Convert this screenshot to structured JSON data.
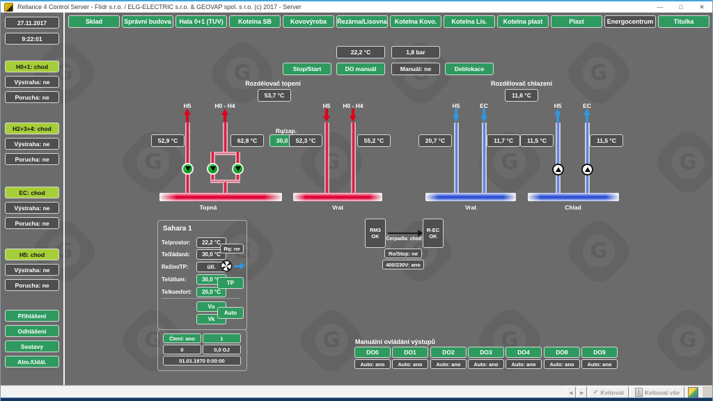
{
  "window": {
    "title": "Reliance 4 Control Server - Flídr s.r.o. / ELG-ELECTRIC s.r.o. & GEOVAP spol. s r.o. (c) 2017 - Server",
    "controls": {
      "minimize": "—",
      "maximize": "□",
      "close": "✕"
    }
  },
  "sidebar": {
    "date": "27.11.2017",
    "time": "9:22:01",
    "groups": [
      {
        "main": "H0+1: chod",
        "warning": "Výstraha: ne",
        "fault": "Porucha: ne"
      },
      {
        "main": "H2+3+4: chod",
        "warning": "Výstraha: ne",
        "fault": "Porucha: ne"
      },
      {
        "main": "EC: chod",
        "warning": "Výstraha: ne",
        "fault": "Porucha: ne"
      },
      {
        "main": "H5: chod",
        "warning": "Výstraha: ne",
        "fault": "Porucha: ne"
      }
    ],
    "buttons": {
      "login": "Přihlášení",
      "logout": "Odhlášení",
      "reports": "Sestavy",
      "alarms": "Alm./Udál."
    }
  },
  "nav": {
    "items": [
      {
        "label": "Sklad",
        "active": false
      },
      {
        "label": "Správní budova",
        "active": false
      },
      {
        "label": "Hala 0+1 (TUV)",
        "active": false
      },
      {
        "label": "Kotelna SB",
        "active": false
      },
      {
        "label": "Kovovýroba",
        "active": false
      },
      {
        "label": "Řezárna/Lisovna",
        "active": false
      },
      {
        "label": "Kotelna Kovo.",
        "active": false
      },
      {
        "label": "Kotelna Lis.",
        "active": false
      },
      {
        "label": "Kotelna plast",
        "active": false
      },
      {
        "label": "Plast",
        "active": false
      },
      {
        "label": "Energocentrum",
        "active": true
      },
      {
        "label": "Titulka",
        "active": false
      }
    ]
  },
  "top_controls": {
    "temperature": "22,2 °C",
    "pressure": "1,8 bar",
    "stop_start": "Stop/Start",
    "do_manual": "DO manuál",
    "manual_status": "Manuál: ne",
    "deblock": "Deblokace"
  },
  "heating": {
    "title": "Rozdělovač topení",
    "header_temp": "53,7 °C",
    "supply_pipes": [
      {
        "label": "H5",
        "temp": "52,9 °C"
      },
      {
        "label": "H0 - H4",
        "temp": "62,8 °C"
      }
    ],
    "setpoint_label": "Rq/zap.",
    "setpoint_value": "30,0 °C",
    "supply_bus": "Topná",
    "return_pipes": [
      {
        "label": "H5",
        "temp": "52,3 °C"
      },
      {
        "label": "H0 - H4",
        "temp": "55,2 °C"
      }
    ],
    "return_bus": "Vrat"
  },
  "cooling": {
    "title": "Rozdělovač chlazení",
    "header_temp": "11,6 °C",
    "return_pipes": [
      {
        "label": "H5",
        "temp": "20,7 °C"
      },
      {
        "label": "EC",
        "temp": "11,7 °C"
      }
    ],
    "return_bus": "Vrat",
    "supply_pipes": [
      {
        "label": "H5",
        "temp": "11,5 °C"
      },
      {
        "label": "EC",
        "temp": "11,5 °C"
      }
    ],
    "supply_bus": "Chlad"
  },
  "sahara": {
    "title": "Sahara 1",
    "rows": [
      {
        "label": "Te/prostor:",
        "value": "22,2 °C"
      },
      {
        "label": "Te/žádaná:",
        "value": "30,0 °C"
      },
      {
        "label": "Režim/TP:",
        "value": "útl."
      },
      {
        "label": "Te/útlum:",
        "value": "30,0 °C"
      },
      {
        "label": "Te/komfort:",
        "value": "20,0 °C"
      }
    ],
    "rq_status": "Rq: ne",
    "tp_button": "TP",
    "vu_button": "Vu",
    "vk_button": "Vk",
    "auto_button": "Auto",
    "meter": {
      "reading": "Čtení: ano",
      "value": "1",
      "count": "0",
      "energy": "0,0 GJ",
      "timestamp": "01.01.1970 0:00:00"
    }
  },
  "flow": {
    "source_title": "RM3",
    "source_status": "OK",
    "target_title": "R-EC",
    "target_status": "OK",
    "arrow_label": "Čerpadla: chod",
    "ro_stop": "Ro/Stop: ne",
    "power": "400/230V: ano"
  },
  "manual_outputs": {
    "title": "Manuální ovládání výstupů",
    "items": [
      {
        "label": "DO0",
        "auto": "Auto: ano"
      },
      {
        "label": "DO1",
        "auto": "Auto: ano"
      },
      {
        "label": "DO2",
        "auto": "Auto: ano"
      },
      {
        "label": "DO3",
        "auto": "Auto: ano"
      },
      {
        "label": "DO4",
        "auto": "Auto: ano"
      },
      {
        "label": "DO8",
        "auto": "Auto: ano"
      },
      {
        "label": "DO9",
        "auto": "Auto: ano"
      }
    ]
  },
  "alarm_bar": {
    "prev": "◄",
    "next": "►",
    "ack": "Kvitovat",
    "ack_all": "Kvitovat vše",
    "ack_check": "✔",
    "ack_all_mark": "!"
  },
  "colors": {
    "accent_green": "#2e9a5f",
    "status_lime": "#a6ce39",
    "box_gray": "#4f4f4f",
    "background_gray": "#6b6b6b",
    "pipe_red": "#c80028",
    "pipe_blue": "#3b5fd0",
    "arrow_red": "#e00020",
    "arrow_blue": "#2f97e0",
    "titlebar_accent": "#42a0dd"
  }
}
